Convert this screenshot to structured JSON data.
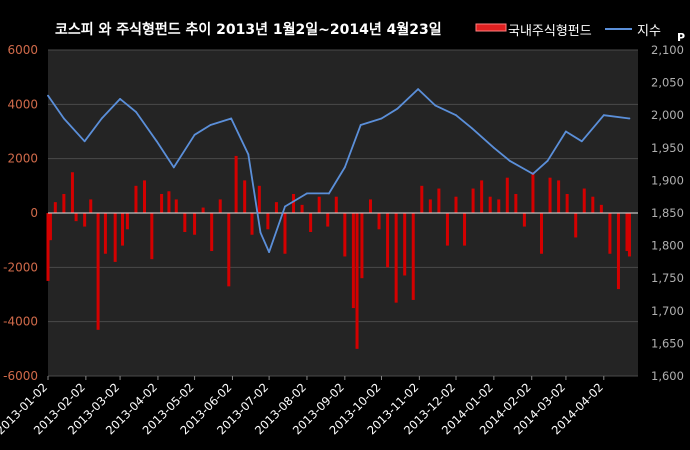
{
  "chart_data": {
    "type": "bar+line",
    "title": "코스피 와 주식형펀드 추이  2013년 1월2일~2014년 4월23일",
    "unit_label": "P",
    "legend": [
      {
        "name": "국내주식형펀드",
        "type": "bar",
        "color": "#d40000"
      },
      {
        "name": "지수",
        "type": "line",
        "color": "#5b8fd9"
      }
    ],
    "legend_position": "top-right",
    "y_left": {
      "min": -6000,
      "max": 6000,
      "ticks": [
        "6000",
        "4000",
        "2000",
        "0",
        "-2000",
        "-4000",
        "-6000"
      ],
      "color": "#d06a4a"
    },
    "y_right": {
      "min": 1600,
      "max": 2100,
      "ticks": [
        "2,100",
        "2,050",
        "2,000",
        "1,950",
        "1,900",
        "1,850",
        "1,800",
        "1,750",
        "1,700",
        "1,650",
        "1,600"
      ]
    },
    "x_ticks": [
      "2013-01-02",
      "2013-02-02",
      "2013-03-02",
      "2013-04-02",
      "2013-05-02",
      "2013-06-02",
      "2013-07-02",
      "2013-08-02",
      "2013-09-02",
      "2013-10-02",
      "2013-11-02",
      "2013-12-02",
      "2014-01-02",
      "2014-02-02",
      "2014-03-02",
      "2014-04-02"
    ],
    "grid": true,
    "series": [
      {
        "name": "지수",
        "x": [
          "2013-01-02",
          "2013-01-15",
          "2013-02-01",
          "2013-02-15",
          "2013-03-02",
          "2013-03-15",
          "2013-04-01",
          "2013-04-15",
          "2013-05-02",
          "2013-05-15",
          "2013-06-01",
          "2013-06-15",
          "2013-06-25",
          "2013-07-02",
          "2013-07-15",
          "2013-08-02",
          "2013-08-20",
          "2013-09-02",
          "2013-09-15",
          "2013-10-02",
          "2013-10-15",
          "2013-11-01",
          "2013-11-15",
          "2013-12-02",
          "2013-12-15",
          "2014-01-02",
          "2014-01-15",
          "2014-02-03",
          "2014-02-15",
          "2014-03-02",
          "2014-03-15",
          "2014-04-02",
          "2014-04-23"
        ],
        "values": [
          2030,
          1995,
          1960,
          1995,
          2025,
          2005,
          1960,
          1920,
          1970,
          1985,
          1995,
          1940,
          1820,
          1790,
          1860,
          1880,
          1880,
          1920,
          1985,
          1995,
          2010,
          2040,
          2015,
          2000,
          1980,
          1950,
          1930,
          1910,
          1930,
          1975,
          1960,
          2000,
          1995
        ]
      },
      {
        "name": "국내주식형펀드",
        "x": [
          "2013-01-02",
          "2013-01-04",
          "2013-01-08",
          "2013-01-15",
          "2013-01-22",
          "2013-01-25",
          "2013-02-01",
          "2013-02-06",
          "2013-02-12",
          "2013-02-18",
          "2013-02-26",
          "2013-03-04",
          "2013-03-08",
          "2013-03-15",
          "2013-03-22",
          "2013-03-28",
          "2013-04-05",
          "2013-04-11",
          "2013-04-17",
          "2013-04-24",
          "2013-05-02",
          "2013-05-09",
          "2013-05-16",
          "2013-05-23",
          "2013-05-30",
          "2013-06-05",
          "2013-06-12",
          "2013-06-18",
          "2013-06-24",
          "2013-07-01",
          "2013-07-08",
          "2013-07-15",
          "2013-07-22",
          "2013-07-29",
          "2013-08-05",
          "2013-08-12",
          "2013-08-19",
          "2013-08-26",
          "2013-09-02",
          "2013-09-09",
          "2013-09-12",
          "2013-09-16",
          "2013-09-23",
          "2013-09-30",
          "2013-10-07",
          "2013-10-14",
          "2013-10-21",
          "2013-10-28",
          "2013-11-04",
          "2013-11-11",
          "2013-11-18",
          "2013-11-25",
          "2013-12-02",
          "2013-12-09",
          "2013-12-16",
          "2013-12-23",
          "2013-12-30",
          "2014-01-06",
          "2014-01-13",
          "2014-01-20",
          "2014-01-27",
          "2014-02-03",
          "2014-02-10",
          "2014-02-17",
          "2014-02-24",
          "2014-03-03",
          "2014-03-10",
          "2014-03-17",
          "2014-03-24",
          "2014-03-31",
          "2014-04-07",
          "2014-04-14",
          "2014-04-21",
          "2014-04-23"
        ],
        "values": [
          -2500,
          -1000,
          400,
          700,
          1500,
          -300,
          -500,
          500,
          -4300,
          -1500,
          -1800,
          -1200,
          -600,
          1000,
          1200,
          -1700,
          700,
          800,
          500,
          -700,
          -800,
          200,
          -1400,
          500,
          -2700,
          2100,
          1200,
          -800,
          1000,
          -600,
          400,
          -1500,
          700,
          300,
          -700,
          600,
          -500,
          600,
          -1600,
          -3500,
          -5000,
          -2400,
          500,
          -600,
          -2000,
          -3300,
          -2300,
          -3200,
          1000,
          500,
          900,
          -1200,
          600,
          -1200,
          900,
          1200,
          600,
          500,
          1300,
          700,
          -500,
          1500,
          -1500,
          1300,
          1200,
          700,
          -900,
          900,
          600,
          300,
          -1500,
          -2800,
          -1400,
          -1600
        ]
      }
    ]
  }
}
